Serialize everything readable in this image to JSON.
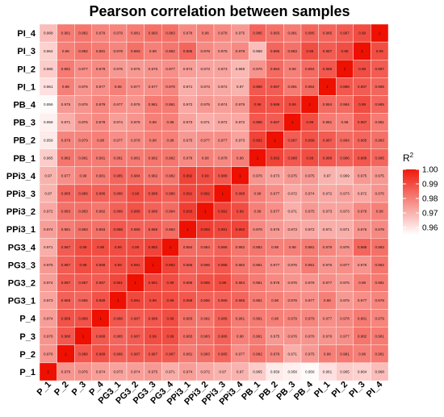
{
  "chart_data": {
    "type": "heatmap",
    "title": "Pearson correlation between samples",
    "xlabel": "",
    "ylabel": "",
    "labels": [
      "P_1",
      "P_2",
      "P_3",
      "P_4",
      "PG3_1",
      "PG3_2",
      "PG3_3",
      "PG3_4",
      "PPi3_1",
      "PPi3_2",
      "PPi3_3",
      "PPi3_4",
      "PB_1",
      "PB_2",
      "PB_3",
      "PB_4",
      "PI_1",
      "PI_2",
      "PI_3",
      "PI_4"
    ],
    "legend": {
      "title": "R",
      "title_superscript": "2",
      "ticks": [
        "1.00",
        "0.99",
        "0.98",
        "0.97",
        "0.96"
      ],
      "range": [
        0.955,
        1.0
      ]
    },
    "colors": {
      "low": "#ffffff",
      "high": "#ee1a0c",
      "diag": "#ee1000"
    },
    "rows_top_to_bottom": [
      [
        "0.968",
        "0.981",
        "0.982",
        "0.979",
        "0.979",
        "0.981",
        "0.983",
        "0.983",
        "0.978",
        "0.98",
        "0.978",
        "0.975",
        "0.985",
        "0.983",
        "0.981",
        "0.985",
        "0.985",
        "0.987",
        "0.99",
        "1"
      ],
      [
        "0.964",
        "0.98",
        "0.982",
        "0.981",
        "0.979",
        "0.983",
        "0.98",
        "0.982",
        "0.985",
        "0.978",
        "0.976",
        "0.978",
        "0.968",
        "0.985",
        "0.983",
        "0.99",
        "0.987",
        "0.99",
        "1",
        "0.99"
      ],
      [
        "0.965",
        "0.981",
        "0.977",
        "0.978",
        "0.975",
        "0.975",
        "0.976",
        "0.977",
        "0.974",
        "0.973",
        "0.973",
        "0.969",
        "0.976",
        "0.984",
        "0.98",
        "0.984",
        "0.988",
        "1",
        "0.99",
        "0.987"
      ],
      [
        "0.961",
        "0.98",
        "0.976",
        "0.977",
        "0.98",
        "0.977",
        "0.977",
        "0.979",
        "0.971",
        "0.973",
        "0.972",
        "0.97",
        "0.988",
        "0.987",
        "0.981",
        "0.984",
        "1",
        "0.988",
        "0.987",
        "0.985"
      ],
      [
        "0.956",
        "0.975",
        "0.976",
        "0.979",
        "0.977",
        "0.976",
        "0.981",
        "0.981",
        "0.972",
        "0.975",
        "0.974",
        "0.975",
        "0.99",
        "0.989",
        "0.99",
        "1",
        "0.984",
        "0.984",
        "0.99",
        "0.985"
      ],
      [
        "0.958",
        "0.971",
        "0.976",
        "0.978",
        "0.974",
        "0.976",
        "0.98",
        "0.98",
        "0.973",
        "0.971",
        "0.972",
        "0.972",
        "0.988",
        "0.987",
        "1",
        "0.99",
        "0.981",
        "0.98",
        "0.987",
        "0.981"
      ],
      [
        "0.959",
        "0.979",
        "0.979",
        "0.98",
        "0.977",
        "0.978",
        "0.98",
        "0.98",
        "0.975",
        "0.977",
        "0.977",
        "0.973",
        "0.992",
        "1",
        "0.987",
        "0.989",
        "0.987",
        "0.984",
        "0.985",
        "0.983"
      ],
      [
        "0.965",
        "0.982",
        "0.981",
        "0.981",
        "0.981",
        "0.981",
        "0.982",
        "0.982",
        "0.978",
        "0.98",
        "0.978",
        "0.98",
        "1",
        "0.992",
        "0.988",
        "0.99",
        "0.988",
        "0.986",
        "0.988",
        "0.985"
      ],
      [
        "0.97",
        "0.977",
        "0.98",
        "0.981",
        "0.985",
        "0.984",
        "0.982",
        "0.982",
        "0.992",
        "0.99",
        "0.988",
        "1",
        "0.976",
        "0.973",
        "0.975",
        "0.975",
        "0.97",
        "0.969",
        "0.975",
        "0.975"
      ],
      [
        "0.97",
        "0.985",
        "0.986",
        "0.986",
        "0.986",
        "0.99",
        "0.988",
        "0.986",
        "0.991",
        "0.992",
        "1",
        "0.988",
        "0.98",
        "0.977",
        "0.972",
        "0.974",
        "0.972",
        "0.973",
        "0.972",
        "0.976"
      ],
      [
        "0.972",
        "0.983",
        "0.983",
        "0.982",
        "0.986",
        "0.989",
        "0.986",
        "0.984",
        "0.993",
        "1",
        "0.992",
        "0.99",
        "0.98",
        "0.977",
        "0.971",
        "0.975",
        "0.973",
        "0.973",
        "0.978",
        "0.98"
      ],
      [
        "0.974",
        "0.981",
        "0.983",
        "0.983",
        "0.988",
        "0.986",
        "0.986",
        "0.984",
        "1",
        "0.993",
        "0.991",
        "0.992",
        "0.978",
        "0.975",
        "0.973",
        "0.972",
        "0.971",
        "0.971",
        "0.976",
        "0.978"
      ],
      [
        "0.971",
        "0.987",
        "0.99",
        "0.99",
        "0.99",
        "0.99",
        "0.992",
        "1",
        "0.984",
        "0.984",
        "0.986",
        "0.982",
        "0.982",
        "0.98",
        "0.98",
        "0.981",
        "0.979",
        "0.976",
        "0.985",
        "0.983"
      ],
      [
        "0.975",
        "0.987",
        "0.99",
        "0.988",
        "0.99",
        "0.991",
        "1",
        "0.992",
        "0.986",
        "0.986",
        "0.988",
        "0.982",
        "0.981",
        "0.977",
        "0.976",
        "0.981",
        "0.976",
        "0.977",
        "0.976",
        "0.982"
      ],
      [
        "0.974",
        "0.987",
        "0.987",
        "0.987",
        "0.991",
        "1",
        "0.991",
        "0.99",
        "0.986",
        "0.989",
        "0.99",
        "0.984",
        "0.981",
        "0.978",
        "0.976",
        "0.976",
        "0.977",
        "0.975",
        "0.98",
        "0.981"
      ],
      [
        "0.973",
        "0.986",
        "0.985",
        "0.989",
        "1",
        "0.991",
        "0.99",
        "0.99",
        "0.988",
        "0.986",
        "0.986",
        "0.985",
        "0.981",
        "0.98",
        "0.978",
        "0.977",
        "0.98",
        "0.975",
        "0.977",
        "0.979"
      ],
      [
        "0.974",
        "0.989",
        "0.989",
        "1",
        "0.988",
        "0.987",
        "0.988",
        "0.99",
        "0.983",
        "0.982",
        "0.986",
        "0.981",
        "0.981",
        "0.98",
        "0.979",
        "0.979",
        "0.977",
        "0.978",
        "0.981",
        "0.979"
      ],
      [
        "0.976",
        "0.988",
        "1",
        "0.988",
        "0.985",
        "0.987",
        "0.99",
        "0.99",
        "0.983",
        "0.983",
        "0.986",
        "0.98",
        "0.981",
        "0.975",
        "0.976",
        "0.976",
        "0.976",
        "0.977",
        "0.982",
        "0.981"
      ],
      [
        "0.976",
        "1",
        "0.988",
        "0.989",
        "0.986",
        "0.987",
        "0.987",
        "0.987",
        "0.981",
        "0.983",
        "0.985",
        "0.977",
        "0.982",
        "0.979",
        "0.971",
        "0.975",
        "0.98",
        "0.981",
        "0.98",
        "0.981"
      ],
      [
        "1",
        "0.976",
        "0.976",
        "0.974",
        "0.973",
        "0.974",
        "0.975",
        "0.971",
        "0.974",
        "0.972",
        "0.97",
        "0.97",
        "0.965",
        "0.959",
        "0.958",
        "0.956",
        "0.961",
        "0.965",
        "0.964",
        "0.968"
      ]
    ]
  }
}
